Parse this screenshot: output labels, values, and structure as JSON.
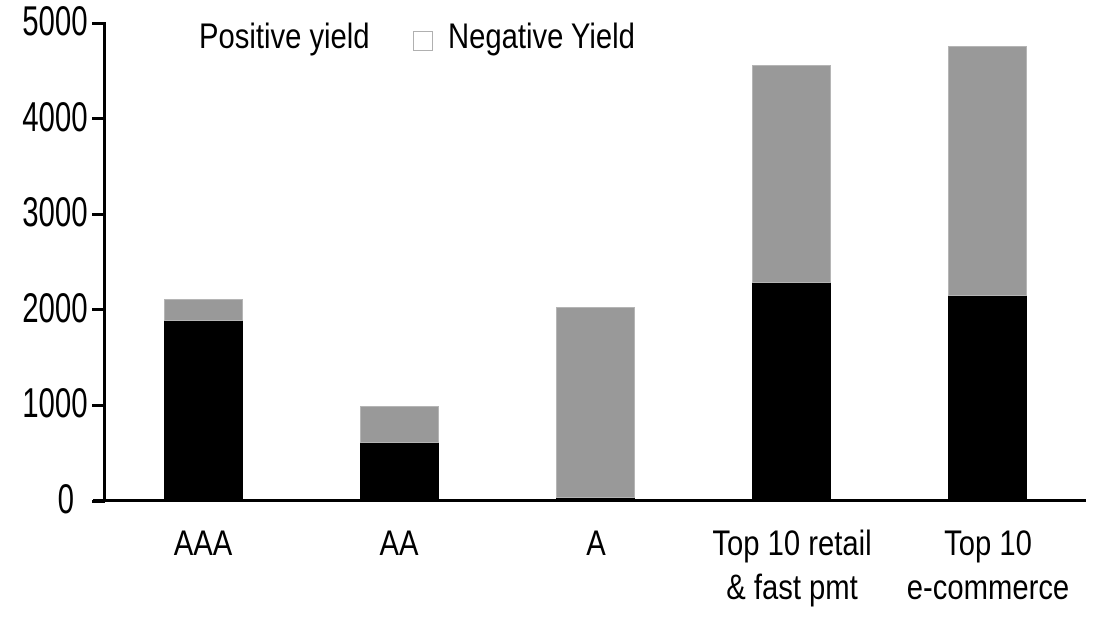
{
  "chart_data": {
    "type": "bar",
    "stacked": true,
    "title": "",
    "xlabel": "",
    "ylabel": "",
    "categories": [
      "AAA",
      "AA",
      "A",
      "Top 10 retail\n& fast pmt",
      "Top 10\ne-commerce"
    ],
    "series": [
      {
        "name": "Positive yield",
        "color": "#000000",
        "values": [
          1890,
          620,
          45,
          2290,
          2150
        ]
      },
      {
        "name": "Negative Yield",
        "color": "#999999",
        "values": [
          230,
          380,
          1990,
          2280,
          2620
        ]
      }
    ],
    "totals": [
      2120,
      1000,
      2035,
      4570,
      4770
    ],
    "ylim": [
      0,
      5000
    ],
    "yticks": [
      0,
      1000,
      2000,
      3000,
      4000,
      5000
    ],
    "grid": false,
    "legend_position": "top-left"
  },
  "colors": {
    "background": "#ffffff",
    "axis": "#000000",
    "positive_series": "#000000",
    "negative_series": "#999999",
    "bar_border": "#b5b5b5"
  }
}
